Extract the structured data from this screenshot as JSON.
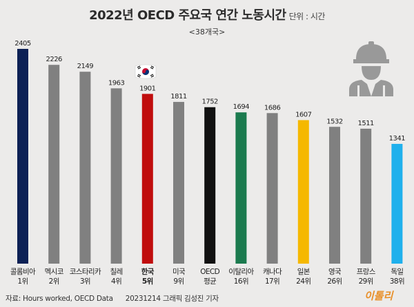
{
  "header": {
    "title": "2022년 OECD 주요국 연간 노동시간",
    "unit": "단위 : 시간",
    "subtitle": "<38개국>"
  },
  "footer": {
    "source": "자료: Hours worked, OECD Data",
    "credit": "20231214 그래픽 김성진 기자",
    "logo_text": "이톨리"
  },
  "chart_data": {
    "type": "bar",
    "title": "2022년 OECD 주요국 연간 노동시간",
    "subtitle": "<38개국>",
    "unit": "단위 : 시간",
    "ylim": [
      0,
      2500
    ],
    "grid": false,
    "categories": [
      {
        "name": "콜롬비아",
        "rank": "1위",
        "value": 2405,
        "color": "#0d2155"
      },
      {
        "name": "멕시코",
        "rank": "2위",
        "value": 2226,
        "color": "#808080"
      },
      {
        "name": "코스타리카",
        "rank": "3위",
        "value": 2149,
        "color": "#808080"
      },
      {
        "name": "칠레",
        "rank": "4위",
        "value": 1963,
        "color": "#808080"
      },
      {
        "name": "한국",
        "rank": "5위",
        "value": 1901,
        "color": "#c00d0d",
        "highlight": true
      },
      {
        "name": "미국",
        "rank": "9위",
        "value": 1811,
        "color": "#808080"
      },
      {
        "name": "OECD",
        "rank": "평균",
        "value": 1752,
        "color": "#111111"
      },
      {
        "name": "이탈리아",
        "rank": "16위",
        "value": 1694,
        "color": "#1b7a4e"
      },
      {
        "name": "캐나다",
        "rank": "17위",
        "value": 1686,
        "color": "#808080"
      },
      {
        "name": "일본",
        "rank": "24위",
        "value": 1607,
        "color": "#f5b800"
      },
      {
        "name": "영국",
        "rank": "26위",
        "value": 1532,
        "color": "#808080"
      },
      {
        "name": "프랑스",
        "rank": "29위",
        "value": 1511,
        "color": "#808080"
      },
      {
        "name": "독일",
        "rank": "38위",
        "value": 1341,
        "color": "#1fb0ec"
      }
    ]
  }
}
